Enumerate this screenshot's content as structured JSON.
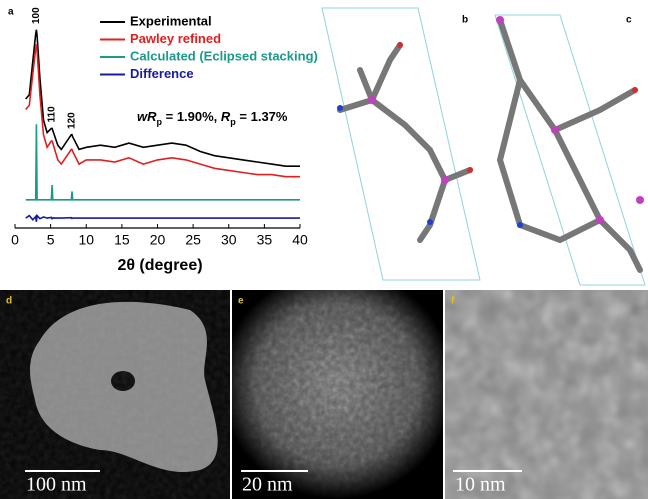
{
  "chart_data": {
    "type": "line",
    "x": [
      1.5,
      2,
      2.5,
      2.9,
      3,
      3.1,
      3.5,
      4,
      4.5,
      5.1,
      5.2,
      5.3,
      6,
      6.5,
      7.9,
      8,
      8.1,
      9,
      10,
      12,
      14,
      16,
      18,
      20,
      22,
      24,
      26,
      28,
      30,
      32,
      34,
      36,
      38,
      40
    ],
    "series": [
      {
        "name": "Experimental",
        "color": "#000000",
        "values": [
          60,
          62,
          78,
          91,
          93,
          90,
          70,
          50,
          44,
          46,
          46,
          45,
          38,
          36,
          43,
          43,
          42,
          36,
          37,
          38,
          37,
          39,
          37,
          38,
          39,
          38,
          35,
          33,
          32,
          31,
          30,
          29,
          28,
          28
        ]
      },
      {
        "name": "Pawley refined",
        "color": "#e02020",
        "values": [
          55,
          57,
          72,
          84,
          86,
          83,
          62,
          43,
          37,
          40,
          40,
          39,
          31,
          29,
          36,
          36,
          35,
          29,
          31,
          31,
          30,
          32,
          29,
          31,
          32,
          31,
          29,
          27,
          26,
          25,
          24,
          24,
          23,
          23
        ]
      },
      {
        "name": "Calculated (Eclipsed stacking)",
        "color": "#1a9a8a",
        "values": [
          12,
          12,
          12,
          12,
          48,
          12,
          12,
          12,
          12,
          12,
          19,
          12,
          12,
          12,
          12,
          16,
          12,
          12,
          12,
          12,
          12,
          12,
          12,
          12,
          12,
          12,
          12,
          12,
          12,
          12,
          12,
          12,
          12,
          12
        ]
      },
      {
        "name": "Difference",
        "color": "#1a1aa0",
        "values": [
          3.3,
          4.5,
          2.5,
          4,
          1.5,
          4.5,
          3,
          3.8,
          3.3,
          3.6,
          3.0,
          3.4,
          3.3,
          3.3,
          3.5,
          3.1,
          3.3,
          3.3,
          3.3,
          3.3,
          3.3,
          3.3,
          3.3,
          3.3,
          3.3,
          3.3,
          3.3,
          3.3,
          3.3,
          3.3,
          3.3,
          3.3,
          3.3,
          3.3
        ]
      }
    ],
    "xlim": [
      0,
      40
    ],
    "xticks": [
      0,
      5,
      10,
      15,
      20,
      25,
      30,
      35,
      40
    ],
    "ylim": [
      0,
      100
    ],
    "x_label": "2θ (degree)",
    "panel_label": "a",
    "peak_labels": [
      {
        "text": "100",
        "x": 3
      },
      {
        "text": "110",
        "x": 5.2
      },
      {
        "text": "120",
        "x": 8
      }
    ],
    "annotation": [
      "wR",
      "p",
      " = 1.90%, ",
      "R",
      "p",
      " = 1.37%"
    ]
  },
  "panels": [
    {
      "label": "b"
    },
    {
      "label": "c"
    },
    {
      "label": "d",
      "scale_bar": "100 nm"
    },
    {
      "label": "e",
      "scale_bar": "20 nm"
    },
    {
      "label": "f",
      "scale_bar": "10 nm"
    }
  ]
}
